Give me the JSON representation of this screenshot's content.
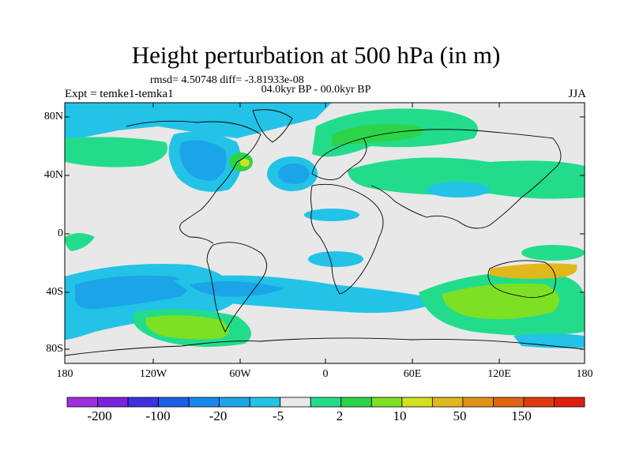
{
  "title": "Height perturbation at 500 hPa (in m)",
  "stats": "rmsd= 4.50748 diff= -3.81933e-08",
  "period": "04.0kyr BP - 00.0kyr BP",
  "experiment": "Expt = temke1-temka1",
  "season": "JJA",
  "y_ticks": [
    "80N",
    "40N",
    "0",
    "40S",
    "80S"
  ],
  "x_ticks": [
    "180",
    "120W",
    "60W",
    "0",
    "60E",
    "120E",
    "180"
  ],
  "colorbar": {
    "colors": [
      "#9f2ee0",
      "#7a22e0",
      "#3d30e0",
      "#1f5fe6",
      "#1a86ea",
      "#1ca4e8",
      "#22c3e6",
      "#e8e8e8",
      "#22dc8c",
      "#2cd44a",
      "#7ee022",
      "#d2e022",
      "#e0b81c",
      "#e09316",
      "#e06412",
      "#e03a0e",
      "#e01e0c"
    ],
    "labels": [
      "-200",
      "-100",
      "-20",
      "-5",
      "2",
      "10",
      "50",
      "150"
    ]
  },
  "map": {
    "background": "#e8e8e8"
  }
}
